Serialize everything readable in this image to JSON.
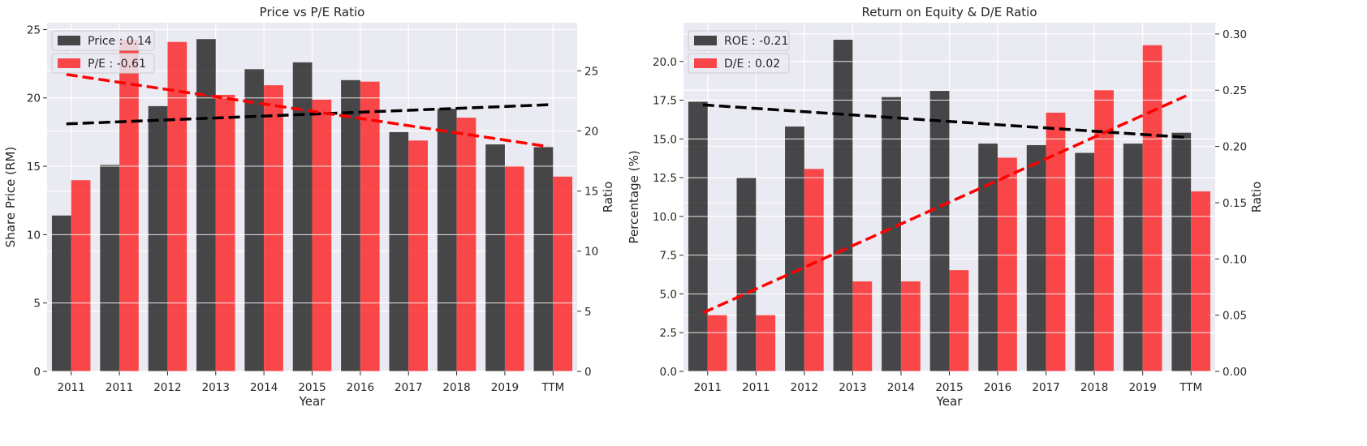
{
  "chart_data": [
    {
      "type": "bar",
      "title": "Price vs P/E Ratio",
      "xlabel": "Year",
      "ylabel": "Share Price (RM)",
      "ylabel_right": "Ratio",
      "categories": [
        "2011",
        "2011",
        "2012",
        "2013",
        "2014",
        "2015",
        "2016",
        "2017",
        "2018",
        "2019",
        "TTM"
      ],
      "ylim": [
        0,
        25.5
      ],
      "ylim_right": [
        0,
        29
      ],
      "yticks": [
        "0",
        "5",
        "10",
        "15",
        "20",
        "25"
      ],
      "yticks_right": [
        "0",
        "5",
        "10",
        "15",
        "20",
        "25"
      ],
      "series": [
        {
          "name": "Price : 0.14",
          "axis": "left",
          "color": "#000000",
          "values": [
            11.4,
            15.1,
            19.4,
            24.3,
            22.1,
            22.6,
            21.3,
            17.5,
            19.2,
            16.6,
            16.4
          ]
        },
        {
          "name": "P/E : -0.61",
          "axis": "right",
          "color": "#ff0000",
          "values": [
            15.9,
            27.6,
            27.4,
            23.0,
            23.8,
            22.6,
            24.1,
            19.2,
            21.1,
            17.1,
            16.2
          ]
        }
      ],
      "trendlines": [
        {
          "axis": "left",
          "color": "#000000",
          "start": 18.1,
          "end": 19.5
        },
        {
          "axis": "right",
          "color": "#ff0000",
          "start": 24.7,
          "end": 18.7
        }
      ],
      "legend_position": "top-left",
      "grid": true
    },
    {
      "type": "bar",
      "title": "Return on Equity & D/E Ratio",
      "xlabel": "Year",
      "ylabel": "Percentage (%)",
      "ylabel_right": "Ratio",
      "categories": [
        "2011",
        "2011",
        "2012",
        "2013",
        "2014",
        "2015",
        "2016",
        "2017",
        "2018",
        "2019",
        "TTM"
      ],
      "ylim": [
        0,
        22.5
      ],
      "ylim_right": [
        0,
        0.31
      ],
      "yticks": [
        "0.0",
        "2.5",
        "5.0",
        "7.5",
        "10.0",
        "12.5",
        "15.0",
        "17.5",
        "20.0"
      ],
      "yticks_right": [
        "0.00",
        "0.05",
        "0.10",
        "0.15",
        "0.20",
        "0.25",
        "0.30"
      ],
      "series": [
        {
          "name": "ROE : -0.21",
          "axis": "left",
          "color": "#000000",
          "values": [
            17.4,
            12.5,
            15.8,
            21.4,
            17.7,
            18.1,
            14.7,
            14.6,
            14.1,
            14.7,
            15.4
          ]
        },
        {
          "name": "D/E : 0.02",
          "axis": "right",
          "color": "#ff0000",
          "values": [
            0.05,
            0.05,
            0.18,
            0.08,
            0.08,
            0.09,
            0.19,
            0.23,
            0.25,
            0.29,
            0.16
          ]
        }
      ],
      "trendlines": [
        {
          "axis": "left",
          "color": "#000000",
          "start": 17.2,
          "end": 15.1
        },
        {
          "axis": "right",
          "color": "#ff0000",
          "start": 0.052,
          "end": 0.245
        }
      ],
      "legend_position": "top-left",
      "grid": true
    }
  ]
}
